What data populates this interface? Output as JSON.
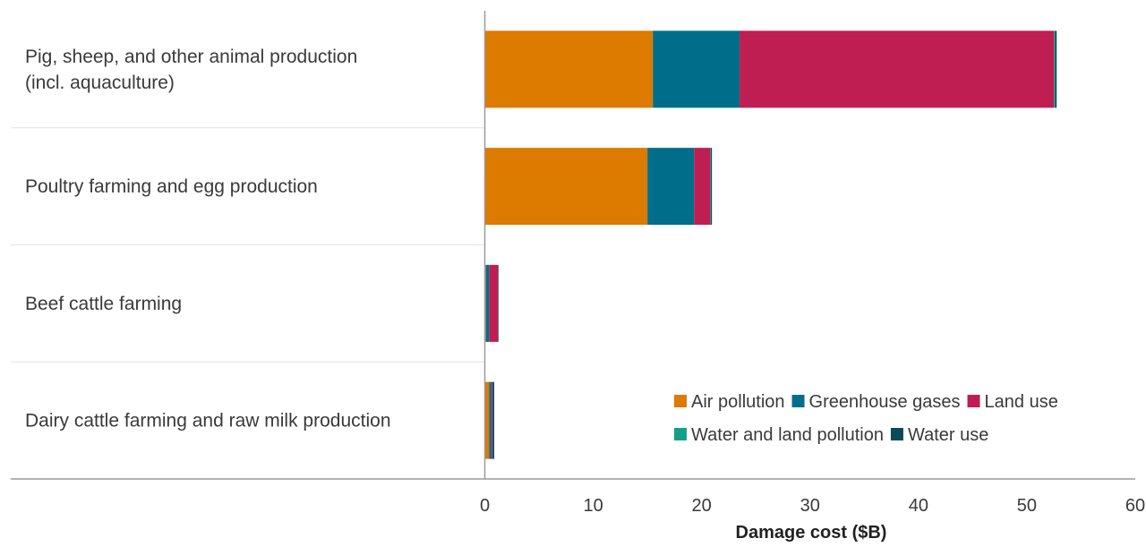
{
  "chart_data": {
    "type": "bar",
    "orientation": "horizontal",
    "stacked": true,
    "categories": [
      [
        "Pig, sheep, and other animal production",
        "(incl. aquaculture)"
      ],
      [
        "Poultry farming and egg production"
      ],
      [
        "Beef cattle farming"
      ],
      [
        "Dairy cattle farming and raw milk production"
      ]
    ],
    "series": [
      {
        "name": "Air pollution",
        "color": "#DD7A00",
        "values": [
          15.5,
          15.0,
          0.1,
          0.4
        ]
      },
      {
        "name": "Greenhouse gases",
        "color": "#006E8A",
        "values": [
          8.0,
          4.3,
          0.3,
          0.2
        ]
      },
      {
        "name": "Land use",
        "color": "#BE1E52",
        "values": [
          29.0,
          1.5,
          0.8,
          0.1
        ]
      },
      {
        "name": "Water and land pollution",
        "color": "#14A088",
        "values": [
          0.1,
          0.05,
          0.02,
          0.02
        ]
      },
      {
        "name": "Water use",
        "color": "#0A4A5A",
        "values": [
          0.15,
          0.1,
          0.05,
          0.15
        ]
      }
    ],
    "xlabel": "Damage cost ($B)",
    "xlim": [
      0,
      60
    ],
    "xticks": [
      0,
      10,
      20,
      30,
      40,
      50,
      60
    ],
    "legend": {
      "position": "bottom-right",
      "rows": [
        [
          "Air pollution",
          "Greenhouse gases",
          "Land use"
        ],
        [
          "Water and land pollution",
          "Water use"
        ]
      ]
    },
    "grid": false
  }
}
